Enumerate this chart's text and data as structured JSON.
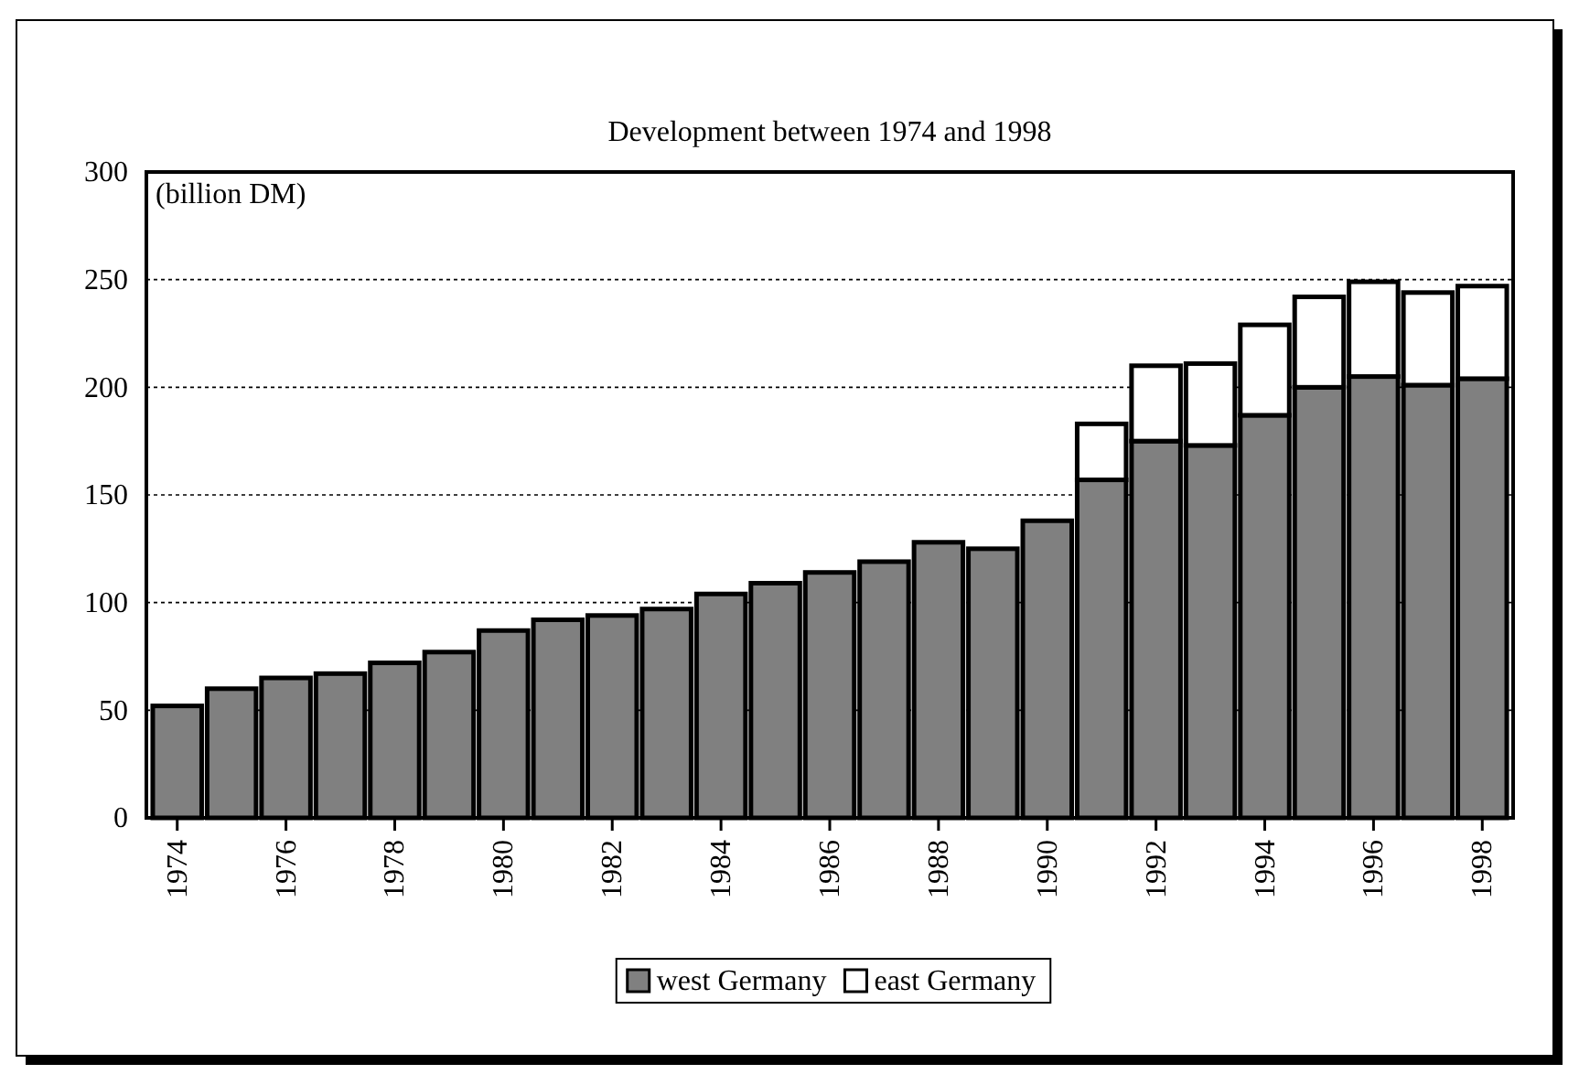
{
  "chart_data": {
    "type": "bar",
    "title": "Development between 1974 and 1998",
    "ylabel": "(billion DM)",
    "stacked": true,
    "categories": [
      "1974",
      null,
      "1976",
      null,
      "1978",
      null,
      "1980",
      null,
      "1982",
      null,
      "1984",
      null,
      "1986",
      null,
      "1988",
      null,
      "1990",
      null,
      "1992",
      null,
      "1994",
      null,
      "1996",
      null,
      "1998"
    ],
    "series": [
      {
        "name": "west Germany",
        "color": "#808080",
        "values": [
          52,
          60,
          65,
          67,
          72,
          77,
          87,
          92,
          94,
          97,
          104,
          109,
          114,
          119,
          128,
          125,
          138,
          157,
          175,
          173,
          187,
          200,
          205,
          201,
          204
        ]
      },
      {
        "name": "east Germany",
        "color": "#ffffff",
        "values": [
          null,
          null,
          null,
          null,
          null,
          null,
          null,
          null,
          null,
          null,
          null,
          null,
          null,
          null,
          null,
          null,
          null,
          26,
          35,
          38,
          42,
          42,
          44,
          43,
          43
        ]
      }
    ],
    "ylim": [
      0,
      300
    ],
    "yticks": [
      0,
      50,
      100,
      150,
      200,
      250,
      300
    ],
    "grid": "y",
    "legend": "bottom"
  }
}
